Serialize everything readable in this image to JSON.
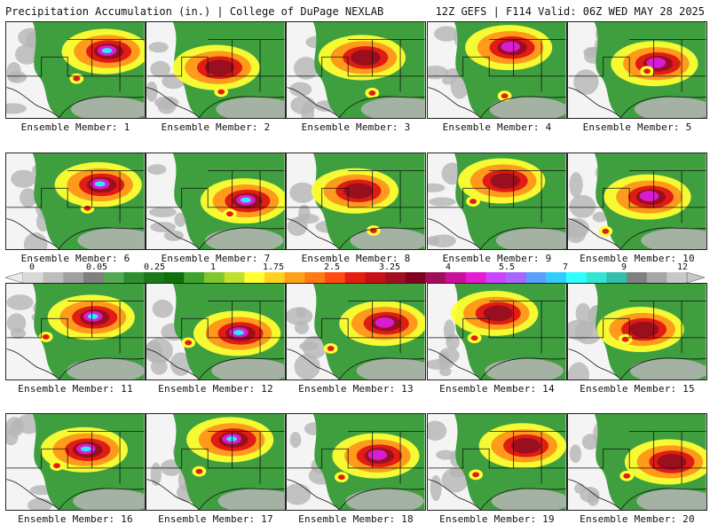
{
  "header": {
    "left": "Precipitation Accumulation (in.) | College of DuPage NEXLAB",
    "right": "12Z GEFS | F114 Valid: 06Z WED MAY 28 2025"
  },
  "colorbar": {
    "tick_labels": [
      "0",
      "0.05",
      "0.25",
      "1",
      "1.75",
      "2.5",
      "3.25",
      "4",
      "5.5",
      "7",
      "9",
      "12"
    ],
    "colors": [
      "#d9d9d9",
      "#bdbdbd",
      "#a0a0a0",
      "#7f7f7f",
      "#55a855",
      "#2f8f2f",
      "#1a7a1a",
      "#0f6f0f",
      "#3da32d",
      "#7fc72d",
      "#bfe02d",
      "#ffff33",
      "#ffd21f",
      "#ffa21a",
      "#ff7a14",
      "#ff4a10",
      "#e61c0f",
      "#c80f16",
      "#a00f1e",
      "#800020",
      "#a0105a",
      "#c8109a",
      "#e61cd2",
      "#cc44ff",
      "#aa66ff",
      "#5aa0ff",
      "#33ccff",
      "#33ffff",
      "#33e6d2",
      "#33bfaa",
      "#808080",
      "#a6a6a6",
      "#c8c8c8"
    ]
  },
  "panels": [
    {
      "label": "Ensemble Member: 1"
    },
    {
      "label": "Ensemble Member: 2"
    },
    {
      "label": "Ensemble Member: 3"
    },
    {
      "label": "Ensemble Member: 4"
    },
    {
      "label": "Ensemble Member: 5"
    },
    {
      "label": "Ensemble Member: 6"
    },
    {
      "label": "Ensemble Member: 7"
    },
    {
      "label": "Ensemble Member: 8"
    },
    {
      "label": "Ensemble Member: 9"
    },
    {
      "label": "Ensemble Member: 10"
    },
    {
      "label": "Ensemble Member: 11"
    },
    {
      "label": "Ensemble Member: 12"
    },
    {
      "label": "Ensemble Member: 13"
    },
    {
      "label": "Ensemble Member: 14"
    },
    {
      "label": "Ensemble Member: 15"
    },
    {
      "label": "Ensemble Member: 16"
    },
    {
      "label": "Ensemble Member: 17"
    },
    {
      "label": "Ensemble Member: 18"
    },
    {
      "label": "Ensemble Member: 19"
    },
    {
      "label": "Ensemble Member: 20"
    }
  ],
  "colors": {
    "land_green": "#3f9f3f",
    "gray_low": "#b5b5b5",
    "yellow": "#ffff33",
    "orange": "#ff9a1a",
    "red": "#e01c14",
    "maroon": "#9a0f1e",
    "magenta": "#d81cd2",
    "cyan": "#33e6ff"
  }
}
